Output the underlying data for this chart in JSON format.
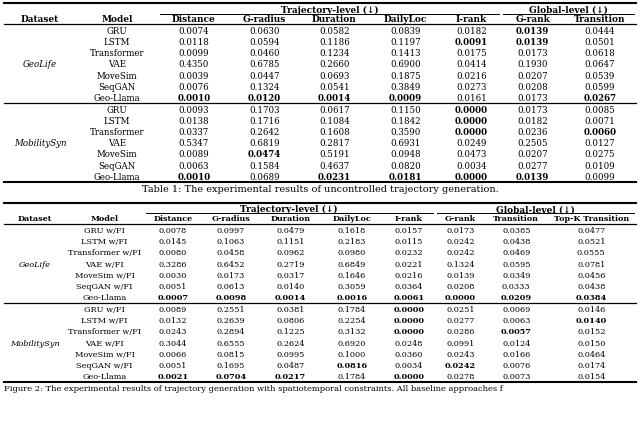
{
  "table1_caption": "Table 1: The experimental results of uncontrolled trajectory generation.",
  "table2_caption": "Figure 2: The experimental results of trajectory generation with spatiotemporal constraints. All baseline approaches f",
  "table1": {
    "col_headers": [
      "Dataset",
      "Model",
      "Distance",
      "G-radius",
      "Duration",
      "DailyLoc",
      "I-rank",
      "G-rank",
      "Transition"
    ],
    "models": [
      "GRU",
      "LSTM",
      "Transformer",
      "VAE",
      "MoveSim",
      "SeqGAN",
      "Geo-Llama"
    ],
    "geolife_data": [
      [
        0.0074,
        0.063,
        0.0582,
        0.0839,
        0.0182,
        0.0139,
        0.0444
      ],
      [
        0.0118,
        0.0594,
        0.1186,
        0.1197,
        0.0091,
        0.0139,
        0.0501
      ],
      [
        0.0099,
        0.046,
        0.1234,
        0.1413,
        0.0175,
        0.0173,
        0.0618
      ],
      [
        0.435,
        0.6785,
        0.266,
        0.69,
        0.0414,
        0.193,
        0.0647
      ],
      [
        0.0039,
        0.0447,
        0.0693,
        0.1875,
        0.0216,
        0.0207,
        0.0539
      ],
      [
        0.0076,
        0.1324,
        0.0541,
        0.3849,
        0.0273,
        0.0208,
        0.0599
      ],
      [
        0.001,
        0.012,
        0.0014,
        0.0009,
        0.0161,
        0.0173,
        0.0267
      ]
    ],
    "geolife_bold": [
      [
        false,
        false,
        false,
        false,
        false,
        true,
        false
      ],
      [
        false,
        false,
        false,
        false,
        true,
        true,
        false
      ],
      [
        false,
        false,
        false,
        false,
        false,
        false,
        false
      ],
      [
        false,
        false,
        false,
        false,
        false,
        false,
        false
      ],
      [
        false,
        false,
        false,
        false,
        false,
        false,
        false
      ],
      [
        false,
        false,
        false,
        false,
        false,
        false,
        false
      ],
      [
        true,
        true,
        true,
        true,
        false,
        false,
        true
      ]
    ],
    "mobilitysyn_data": [
      [
        0.0093,
        0.1703,
        0.0617,
        0.115,
        0.0,
        0.0173,
        0.0085
      ],
      [
        0.0138,
        0.1716,
        0.1084,
        0.1842,
        0.0,
        0.0182,
        0.0071
      ],
      [
        0.0337,
        0.2642,
        0.1608,
        0.359,
        0.0,
        0.0236,
        0.006
      ],
      [
        0.5347,
        0.6819,
        0.2817,
        0.6931,
        0.0249,
        0.2505,
        0.0127
      ],
      [
        0.0089,
        0.0474,
        0.5191,
        0.0948,
        0.0473,
        0.0207,
        0.0275
      ],
      [
        0.0063,
        0.1584,
        0.4637,
        0.082,
        0.0034,
        0.0277,
        0.0109
      ],
      [
        0.001,
        0.0689,
        0.0231,
        0.0181,
        0.0,
        0.0139,
        0.0099
      ]
    ],
    "mobilitysyn_bold": [
      [
        false,
        false,
        false,
        false,
        true,
        false,
        false
      ],
      [
        false,
        false,
        false,
        false,
        true,
        false,
        false
      ],
      [
        false,
        false,
        false,
        false,
        true,
        false,
        true
      ],
      [
        false,
        false,
        false,
        false,
        false,
        false,
        false
      ],
      [
        false,
        true,
        false,
        false,
        false,
        false,
        false
      ],
      [
        false,
        false,
        false,
        false,
        false,
        false,
        false
      ],
      [
        true,
        false,
        true,
        true,
        true,
        true,
        false
      ]
    ]
  },
  "table2": {
    "col_headers": [
      "Dataset",
      "Model",
      "Distance",
      "G-radius",
      "Duration",
      "DailyLoc",
      "I-rank",
      "G-rank",
      "Transition",
      "Top-K Transition"
    ],
    "models": [
      "GRU w/FI",
      "LSTM w/FI",
      "Transformer w/FI",
      "VAE w/FI",
      "MoveSim w/FI",
      "SeqGAN w/FI",
      "Geo-Llama"
    ],
    "geolife_data": [
      [
        0.0078,
        0.0997,
        0.0479,
        0.1618,
        0.0157,
        0.0173,
        0.0385,
        0.0477
      ],
      [
        0.0145,
        0.1063,
        0.1151,
        0.2183,
        0.0115,
        0.0242,
        0.0438,
        0.0521
      ],
      [
        0.008,
        0.0458,
        0.0962,
        0.098,
        0.0232,
        0.0242,
        0.0469,
        0.0555
      ],
      [
        0.3286,
        0.6452,
        0.2719,
        0.6849,
        0.0221,
        0.1324,
        0.0595,
        0.0781
      ],
      [
        0.003,
        0.0173,
        0.0317,
        0.1646,
        0.0216,
        0.0139,
        0.0349,
        0.0456
      ],
      [
        0.0051,
        0.0613,
        0.014,
        0.3059,
        0.0364,
        0.0208,
        0.0333,
        0.0438
      ],
      [
        0.0007,
        0.0098,
        0.0014,
        0.0016,
        0.0061,
        0.0,
        0.0209,
        0.0384
      ]
    ],
    "geolife_bold": [
      [
        false,
        false,
        false,
        false,
        false,
        false,
        false,
        false
      ],
      [
        false,
        false,
        false,
        false,
        false,
        false,
        false,
        false
      ],
      [
        false,
        false,
        false,
        false,
        false,
        false,
        false,
        false
      ],
      [
        false,
        false,
        false,
        false,
        false,
        false,
        false,
        false
      ],
      [
        false,
        false,
        false,
        false,
        false,
        false,
        false,
        false
      ],
      [
        false,
        false,
        false,
        false,
        false,
        false,
        false,
        false
      ],
      [
        true,
        true,
        true,
        true,
        true,
        true,
        true,
        true
      ]
    ],
    "mobilitysyn_data": [
      [
        0.0089,
        0.2551,
        0.0381,
        0.1784,
        0.0,
        0.0251,
        0.0069,
        0.0146
      ],
      [
        0.0132,
        0.2639,
        0.0806,
        0.2254,
        0.0,
        0.0277,
        0.0063,
        0.014
      ],
      [
        0.0243,
        0.2894,
        0.1225,
        0.3132,
        0.0,
        0.0286,
        0.0057,
        0.0152
      ],
      [
        0.3044,
        0.6555,
        0.2624,
        0.692,
        0.0248,
        0.0991,
        0.0124,
        0.015
      ],
      [
        0.0066,
        0.0815,
        0.0995,
        0.1,
        0.036,
        0.0243,
        0.0166,
        0.0464
      ],
      [
        0.0051,
        0.1695,
        0.0487,
        0.0816,
        0.0034,
        0.0242,
        0.0076,
        0.0174
      ],
      [
        0.0021,
        0.0704,
        0.0217,
        0.1784,
        0.0,
        0.0278,
        0.0073,
        0.0154
      ]
    ],
    "mobilitysyn_bold": [
      [
        false,
        false,
        false,
        false,
        true,
        false,
        false,
        false
      ],
      [
        false,
        false,
        false,
        false,
        true,
        false,
        false,
        true
      ],
      [
        false,
        false,
        false,
        false,
        true,
        false,
        true,
        false
      ],
      [
        false,
        false,
        false,
        false,
        false,
        false,
        false,
        false
      ],
      [
        false,
        false,
        false,
        false,
        false,
        false,
        false,
        false
      ],
      [
        false,
        false,
        false,
        true,
        false,
        true,
        false,
        false
      ],
      [
        true,
        true,
        true,
        false,
        true,
        false,
        false,
        false
      ]
    ]
  }
}
